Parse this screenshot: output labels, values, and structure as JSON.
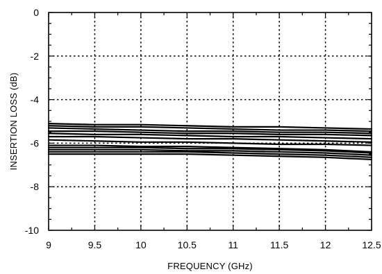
{
  "chart_data": {
    "type": "line",
    "title": "",
    "xlabel": "FREQUENCY (GHz)",
    "ylabel": "INSERTION LOSS (dB)",
    "xlim": [
      9,
      12.5
    ],
    "ylim": [
      -10,
      0
    ],
    "x_ticks": [
      9,
      9.5,
      10,
      10.5,
      11,
      11.5,
      12,
      12.5
    ],
    "x_tick_labels": [
      "9",
      "9.5",
      "10",
      "10.5",
      "11",
      "11.5",
      "12",
      "12.5"
    ],
    "y_ticks": [
      0,
      -2,
      -4,
      -6,
      -8,
      -10
    ],
    "y_tick_labels": [
      "0",
      "-2",
      "-4",
      "-6",
      "-8",
      "-10"
    ],
    "grid": true,
    "grid_style": "dotted",
    "legend": "none",
    "colors": {
      "line": "#000000",
      "grid": "#000000",
      "frame": "#000000",
      "background": "#ffffff"
    },
    "x": [
      9,
      9.5,
      10,
      10.5,
      11,
      11.5,
      12,
      12.5
    ],
    "series": [
      {
        "values": [
          -5.1,
          -5.15,
          -5.15,
          -5.2,
          -5.25,
          -5.25,
          -5.3,
          -5.35
        ]
      },
      {
        "values": [
          -5.2,
          -5.25,
          -5.25,
          -5.3,
          -5.35,
          -5.4,
          -5.4,
          -5.45
        ]
      },
      {
        "values": [
          -5.3,
          -5.35,
          -5.4,
          -5.45,
          -5.45,
          -5.5,
          -5.5,
          -5.55
        ]
      },
      {
        "values": [
          -5.45,
          -5.45,
          -5.5,
          -5.55,
          -5.55,
          -5.6,
          -5.6,
          -5.65
        ]
      },
      {
        "values": [
          -5.55,
          -5.6,
          -5.6,
          -5.65,
          -5.7,
          -5.7,
          -5.75,
          -5.8
        ]
      },
      {
        "values": [
          -5.7,
          -5.7,
          -5.75,
          -5.8,
          -5.8,
          -5.85,
          -5.9,
          -5.95
        ]
      },
      {
        "values": [
          -5.85,
          -5.9,
          -5.95,
          -5.95,
          -6.0,
          -6.05,
          -6.05,
          -6.1
        ]
      },
      {
        "values": [
          -6.1,
          -6.1,
          -6.15,
          -6.15,
          -6.2,
          -6.25,
          -6.3,
          -6.4
        ]
      },
      {
        "values": [
          -6.2,
          -6.2,
          -6.2,
          -6.25,
          -6.25,
          -6.3,
          -6.35,
          -6.45
        ]
      },
      {
        "values": [
          -6.3,
          -6.3,
          -6.3,
          -6.35,
          -6.35,
          -6.4,
          -6.45,
          -6.55
        ]
      },
      {
        "values": [
          -6.4,
          -6.4,
          -6.4,
          -6.4,
          -6.45,
          -6.5,
          -6.55,
          -6.65
        ]
      },
      {
        "values": [
          -6.5,
          -6.5,
          -6.5,
          -6.5,
          -6.55,
          -6.6,
          -6.65,
          -6.75
        ]
      }
    ]
  }
}
